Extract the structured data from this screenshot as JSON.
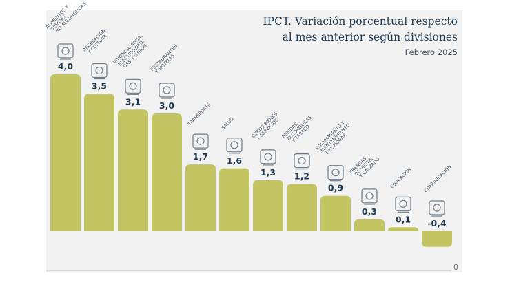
{
  "chart_data": {
    "type": "bar",
    "title": "IPCT. Variación porcentual respecto al mes anterior según divisiones",
    "title_lines": [
      "IPCT. Variación porcentual respecto",
      "al mes anterior según divisiones"
    ],
    "subtitle": "Febrero 2025",
    "categories": [
      [
        "ALIMENTOS Y",
        "BEBIDAS",
        "NO ALCOHÓLICAS"
      ],
      [
        "RECREACIÓN",
        "Y CULTURA"
      ],
      [
        "VIVIENDA, AGUA,",
        "ELECTRICIDAD,",
        "GAS Y OTROS"
      ],
      [
        "RESTAURANTES",
        "Y HOTELES"
      ],
      [
        "TRANSPORTE"
      ],
      [
        "SALUD"
      ],
      [
        "OTROS BIENES",
        "Y SERVICIOS"
      ],
      [
        "BEBIDAS",
        "ALCOHÓLICAS",
        "Y TABACO"
      ],
      [
        "EQUIPAMIENTO Y",
        "MANTENIMIENTO",
        "DEL HOGAR"
      ],
      [
        "PRENDAS",
        "DE VESTIR",
        "Y CALZADO"
      ],
      [
        "EDUCACIÓN"
      ],
      [
        "COMUNICACIÓN"
      ]
    ],
    "icons": [
      "food-basket-icon",
      "camera-icon",
      "house-icon",
      "plate-cutlery-icon",
      "bus-icon",
      "hospital-icon",
      "scissors-icon",
      "wine-bottle-icon",
      "microwave-icon",
      "shirt-icon",
      "document-icon",
      "phone-icon"
    ],
    "values": [
      4.0,
      3.5,
      3.1,
      3.0,
      1.7,
      1.6,
      1.3,
      1.2,
      0.9,
      0.3,
      0.1,
      -0.4
    ],
    "value_labels": [
      "4,0",
      "3,5",
      "3,1",
      "3,0",
      "1,7",
      "1,6",
      "1,3",
      "1,2",
      "0,9",
      "0,3",
      "0,1",
      "-0,4"
    ],
    "baseline_label": "0",
    "bar_color": "#c3c462",
    "text_color": "#1e3a52",
    "ylim": [
      -0.4,
      4.0
    ],
    "grid": false,
    "legend": "none"
  }
}
